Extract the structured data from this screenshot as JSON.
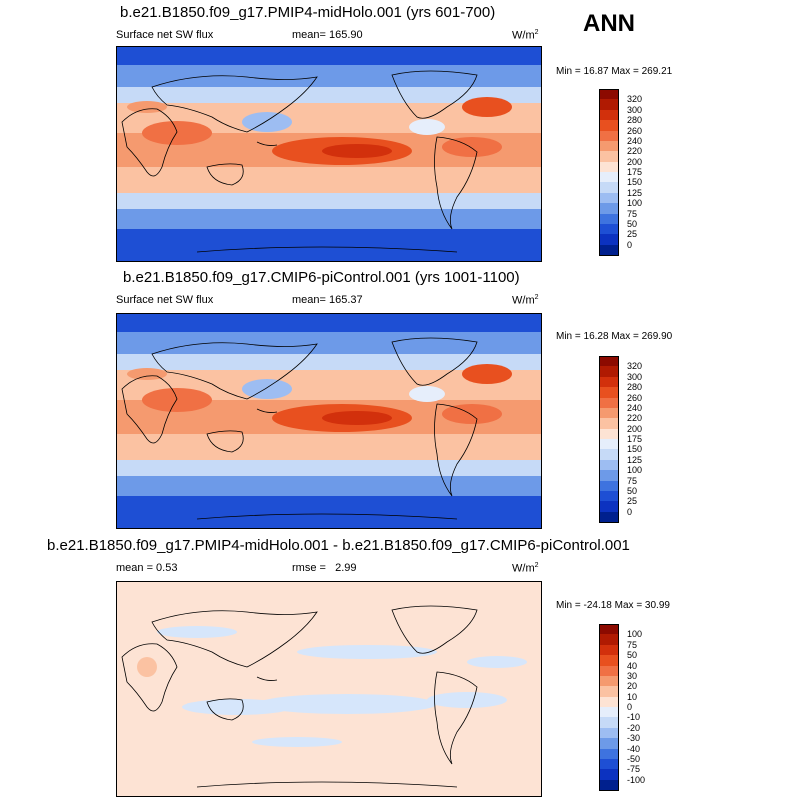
{
  "season": "ANN",
  "panels": [
    {
      "title": "b.e21.B1850.f09_g17.PMIP4-midHolo.001 (yrs 601-700)",
      "left_label": "Surface net SW flux",
      "stat_label": "mean=",
      "stat_value": "165.90",
      "units": "W/m",
      "units_sup": "2",
      "minmax": "Min =  16.87 Max = 269.21",
      "colorbar_labels": [
        "320",
        "300",
        "280",
        "260",
        "240",
        "220",
        "200",
        "175",
        "150",
        "125",
        "100",
        "75",
        "50",
        "25",
        "0"
      ],
      "colorbar_colors": [
        "#8c0a00",
        "#b01a02",
        "#d2300c",
        "#e8501f",
        "#f07044",
        "#f59a6f",
        "#fbc2a2",
        "#fde3d4",
        "#e6eefb",
        "#c6daf7",
        "#9dbdf2",
        "#6d9ae8",
        "#3e73df",
        "#1e4fd4",
        "#0c32c0",
        "#00208e"
      ]
    },
    {
      "title": "b.e21.B1850.f09_g17.CMIP6-piControl.001 (yrs 1001-1100)",
      "left_label": "Surface net SW flux",
      "stat_label": "mean=",
      "stat_value": "165.37",
      "units": "W/m",
      "units_sup": "2",
      "minmax": "Min =  16.28 Max = 269.90",
      "colorbar_labels": [
        "320",
        "300",
        "280",
        "260",
        "240",
        "220",
        "200",
        "175",
        "150",
        "125",
        "100",
        "75",
        "50",
        "25",
        "0"
      ],
      "colorbar_colors": [
        "#8c0a00",
        "#b01a02",
        "#d2300c",
        "#e8501f",
        "#f07044",
        "#f59a6f",
        "#fbc2a2",
        "#fde3d4",
        "#e6eefb",
        "#c6daf7",
        "#9dbdf2",
        "#6d9ae8",
        "#3e73df",
        "#1e4fd4",
        "#0c32c0",
        "#00208e"
      ]
    },
    {
      "title": "b.e21.B1850.f09_g17.PMIP4-midHolo.001 - b.e21.B1850.f09_g17.CMIP6-piControl.001",
      "left_label": "mean =   0.53",
      "stat_label": "rmse =",
      "stat_value": "2.99",
      "units": "W/m",
      "units_sup": "2",
      "minmax": "Min = -24.18 Max =  30.99",
      "colorbar_labels": [
        "100",
        "75",
        "50",
        "40",
        "30",
        "20",
        "10",
        "0",
        "-10",
        "-20",
        "-30",
        "-40",
        "-50",
        "-75",
        "-100"
      ],
      "colorbar_colors": [
        "#8c0a00",
        "#b01a02",
        "#d2300c",
        "#e8501f",
        "#f07044",
        "#f59a6f",
        "#fbc2a2",
        "#fde3d4",
        "#e6eefb",
        "#c6daf7",
        "#9dbdf2",
        "#6d9ae8",
        "#3e73df",
        "#1e4fd4",
        "#0c32c0",
        "#00208e"
      ]
    }
  ],
  "palette": {
    "ocean_pole": "#1e4fd4",
    "ocean_high": "#3e73df",
    "ocean_mid": "#9dbdf2",
    "ocean_trop": "#f59a6f",
    "max_red": "#e8501f",
    "diff_bg": "#fde3d4",
    "diff_neg": "#d6e6fb"
  }
}
